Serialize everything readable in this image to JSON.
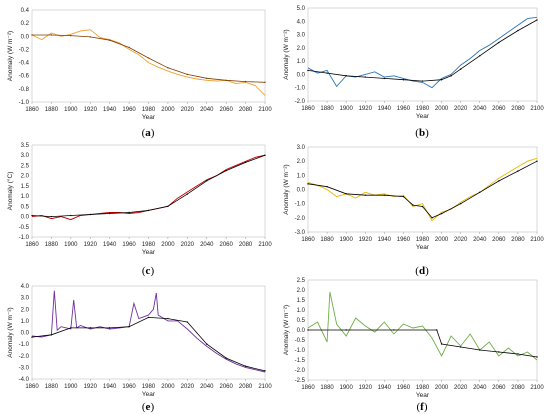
{
  "figure": {
    "panels": [
      {
        "label_open": "(",
        "label_letter": "a",
        "label_close": ")",
        "ylabel": "Anomaly (W m⁻²)",
        "xlabel": "Year"
      },
      {
        "label_open": "(",
        "label_letter": "b",
        "label_close": ")",
        "ylabel": "Anomaly (W m⁻²)",
        "xlabel": "Year"
      },
      {
        "label_open": "(",
        "label_letter": "c",
        "label_close": ")",
        "ylabel": "Anomaly (°C)",
        "xlabel": "Year"
      },
      {
        "label_open": "(",
        "label_letter": "d",
        "label_close": ")",
        "ylabel": "Anomaly (W m⁻²)",
        "xlabel": "Year"
      },
      {
        "label_open": "(",
        "label_letter": "e",
        "label_close": ")",
        "ylabel": "Anomaly (W m⁻²)",
        "xlabel": "Year"
      },
      {
        "label_open": "(",
        "label_letter": "f",
        "label_close": ")",
        "ylabel": "Anomaly (W m⁻²)",
        "xlabel": "Year"
      }
    ]
  },
  "chart_data": [
    {
      "type": "line",
      "panel": "a",
      "xlabel": "Year",
      "ylabel": "Anomaly (W m⁻²)",
      "xlim": [
        1860,
        2100
      ],
      "ylim": [
        -1.0,
        0.4
      ],
      "xticks": [
        1860,
        1880,
        1900,
        1920,
        1940,
        1960,
        1980,
        2000,
        2020,
        2040,
        2060,
        2080,
        2100
      ],
      "yticks": [
        -1.0,
        -0.8,
        -0.6,
        -0.4,
        -0.2,
        0.0,
        0.2,
        0.4
      ],
      "ytick_labels": [
        "-1.0",
        "-0.8",
        "-0.6",
        "-0.4",
        "-0.2",
        "0.0",
        "0.2",
        "0.4"
      ],
      "series_color": "#f0a030",
      "trend_color": "#7a3c00",
      "series": [
        {
          "x": [
            1860,
            1870,
            1880,
            1890,
            1900,
            1910,
            1920,
            1930,
            1940,
            1950,
            1960,
            1970,
            1980,
            1990,
            2000,
            2010,
            2020,
            2030,
            2040,
            2050,
            2060,
            2070,
            2080,
            2090,
            2100
          ],
          "values": [
            0.02,
            -0.05,
            0.05,
            0.0,
            0.03,
            0.08,
            0.1,
            -0.02,
            -0.05,
            -0.1,
            -0.2,
            -0.28,
            -0.4,
            -0.47,
            -0.53,
            -0.58,
            -0.62,
            -0.65,
            -0.67,
            -0.68,
            -0.67,
            -0.72,
            -0.7,
            -0.75,
            -0.9
          ]
        },
        {
          "x": [
            1860,
            1880,
            1900,
            1920,
            1940,
            1960,
            1980,
            2000,
            2020,
            2040,
            2060,
            2080,
            2100
          ],
          "values": [
            0.02,
            0.02,
            0.01,
            -0.01,
            -0.06,
            -0.17,
            -0.33,
            -0.48,
            -0.58,
            -0.64,
            -0.67,
            -0.69,
            -0.7
          ]
        }
      ]
    },
    {
      "type": "line",
      "panel": "b",
      "xlabel": "Year",
      "ylabel": "Anomaly (W m⁻²)",
      "xlim": [
        1860,
        2100
      ],
      "ylim": [
        -2.0,
        5.0
      ],
      "xticks": [
        1860,
        1880,
        1900,
        1920,
        1940,
        1960,
        1980,
        2000,
        2020,
        2040,
        2060,
        2080,
        2100
      ],
      "yticks": [
        -2.0,
        -1.0,
        0.0,
        1.0,
        2.0,
        3.0,
        4.0,
        5.0
      ],
      "ytick_labels": [
        "-2.0",
        "-1.0",
        "0.0",
        "1.0",
        "2.0",
        "3.0",
        "4.0",
        "5.0"
      ],
      "series_color": "#2e75b6",
      "trend_color": "#000000",
      "series": [
        {
          "x": [
            1860,
            1870,
            1880,
            1890,
            1900,
            1910,
            1920,
            1930,
            1940,
            1950,
            1960,
            1970,
            1980,
            1990,
            2000,
            2010,
            2020,
            2030,
            2040,
            2050,
            2060,
            2070,
            2080,
            2090,
            2100
          ],
          "values": [
            0.5,
            0.1,
            0.3,
            -0.9,
            -0.1,
            -0.2,
            0.0,
            0.2,
            -0.2,
            -0.1,
            -0.3,
            -0.5,
            -0.6,
            -1.0,
            -0.3,
            0.0,
            0.7,
            1.2,
            1.8,
            2.2,
            2.7,
            3.2,
            3.7,
            4.2,
            4.3
          ]
        },
        {
          "x": [
            1860,
            1880,
            1900,
            1920,
            1940,
            1960,
            1980,
            2000,
            2010,
            2020,
            2040,
            2060,
            2080,
            2100
          ],
          "values": [
            0.3,
            0.1,
            -0.1,
            -0.2,
            -0.3,
            -0.4,
            -0.5,
            -0.4,
            -0.1,
            0.4,
            1.4,
            2.4,
            3.3,
            4.1
          ]
        }
      ]
    },
    {
      "type": "line",
      "panel": "c",
      "xlabel": "Year",
      "ylabel": "Anomaly (°C)",
      "xlim": [
        1860,
        2100
      ],
      "ylim": [
        -1.0,
        3.5
      ],
      "xticks": [
        1860,
        1880,
        1900,
        1920,
        1940,
        1960,
        1980,
        2000,
        2020,
        2040,
        2060,
        2080,
        2100
      ],
      "yticks": [
        -1.0,
        -0.5,
        0.0,
        0.5,
        1.0,
        1.5,
        2.0,
        2.5,
        3.0,
        3.5
      ],
      "ytick_labels": [
        "-1.0",
        "-0.5",
        "0.0",
        "0.5",
        "1.0",
        "1.5",
        "2.0",
        "2.5",
        "3.0",
        "3.5"
      ],
      "series_color": "#c00000",
      "trend_color": "#000000",
      "series": [
        {
          "x": [
            1860,
            1870,
            1880,
            1890,
            1900,
            1910,
            1920,
            1930,
            1940,
            1950,
            1960,
            1970,
            1980,
            1990,
            2000,
            2010,
            2020,
            2030,
            2040,
            2050,
            2060,
            2070,
            2080,
            2090,
            2100
          ],
          "values": [
            0.0,
            0.05,
            -0.1,
            0.0,
            -0.15,
            0.05,
            0.1,
            0.15,
            0.2,
            0.2,
            0.15,
            0.2,
            0.3,
            0.4,
            0.5,
            0.9,
            1.2,
            1.5,
            1.8,
            2.0,
            2.3,
            2.5,
            2.7,
            2.9,
            3.0
          ]
        },
        {
          "x": [
            1860,
            1880,
            1900,
            1920,
            1940,
            1960,
            1980,
            2000,
            2020,
            2040,
            2060,
            2080,
            2100
          ],
          "values": [
            0.05,
            0.0,
            0.05,
            0.1,
            0.15,
            0.2,
            0.3,
            0.5,
            1.1,
            1.75,
            2.25,
            2.65,
            3.0
          ]
        }
      ]
    },
    {
      "type": "line",
      "panel": "d",
      "xlabel": "Year",
      "ylabel": "Anomaly (W m⁻²)",
      "xlim": [
        1860,
        2100
      ],
      "ylim": [
        -3.0,
        3.0
      ],
      "xticks": [
        1860,
        1880,
        1900,
        1920,
        1940,
        1960,
        1980,
        2000,
        2020,
        2040,
        2060,
        2080,
        2100
      ],
      "yticks": [
        -3.0,
        -2.0,
        -1.0,
        0.0,
        1.0,
        2.0,
        3.0
      ],
      "ytick_labels": [
        "-3.0",
        "-2.0",
        "-1.0",
        "0.0",
        "1.0",
        "2.0",
        "3.0"
      ],
      "series_color": "#e6b800",
      "trend_color": "#000000",
      "series": [
        {
          "x": [
            1860,
            1870,
            1880,
            1890,
            1900,
            1910,
            1920,
            1930,
            1940,
            1950,
            1960,
            1970,
            1980,
            1990,
            2000,
            2010,
            2020,
            2030,
            2040,
            2050,
            2060,
            2070,
            2080,
            2090,
            2100
          ],
          "values": [
            0.5,
            0.3,
            0.0,
            -0.5,
            -0.3,
            -0.6,
            -0.2,
            -0.4,
            -0.3,
            -0.5,
            -0.4,
            -1.2,
            -1.0,
            -2.2,
            -1.6,
            -1.4,
            -0.9,
            -0.5,
            -0.2,
            0.3,
            0.8,
            1.2,
            1.6,
            2.0,
            2.2
          ]
        },
        {
          "x": [
            1860,
            1880,
            1900,
            1920,
            1940,
            1960,
            1970,
            1980,
            1990,
            2000,
            2020,
            2040,
            2060,
            2080,
            2100
          ],
          "values": [
            0.4,
            0.2,
            -0.3,
            -0.4,
            -0.4,
            -0.5,
            -1.1,
            -1.2,
            -2.0,
            -1.7,
            -1.0,
            -0.2,
            0.6,
            1.3,
            2.0
          ]
        }
      ]
    },
    {
      "type": "line",
      "panel": "e",
      "xlabel": "Year",
      "ylabel": "Anomaly (W m⁻²)",
      "xlim": [
        1860,
        2100
      ],
      "ylim": [
        -4.0,
        4.0
      ],
      "xticks": [
        1860,
        1880,
        1900,
        1920,
        1940,
        1960,
        1980,
        2000,
        2020,
        2040,
        2060,
        2080,
        2100
      ],
      "yticks": [
        -4.0,
        -3.0,
        -2.0,
        -1.0,
        0.0,
        1.0,
        2.0,
        3.0,
        4.0
      ],
      "ytick_labels": [
        "-4.0",
        "-3.0",
        "-2.0",
        "-1.0",
        "0.0",
        "1.0",
        "2.0",
        "3.0",
        "4.0"
      ],
      "series_color": "#7030a0",
      "trend_color": "#000000",
      "series": [
        {
          "x": [
            1860,
            1870,
            1880,
            1883,
            1886,
            1890,
            1900,
            1903,
            1906,
            1910,
            1920,
            1930,
            1940,
            1950,
            1960,
            1965,
            1970,
            1980,
            1985,
            1988,
            1990,
            2000,
            2010,
            2020,
            2030,
            2040,
            2050,
            2060,
            2070,
            2080,
            2090,
            2100
          ],
          "values": [
            -0.3,
            -0.4,
            -0.2,
            3.6,
            0.2,
            0.5,
            0.3,
            2.8,
            0.4,
            0.6,
            0.3,
            0.5,
            0.3,
            0.4,
            0.5,
            2.5,
            1.2,
            1.5,
            2.0,
            3.4,
            1.5,
            1.0,
            1.0,
            0.3,
            -0.5,
            -1.2,
            -1.8,
            -2.3,
            -2.7,
            -3.0,
            -3.2,
            -3.4
          ]
        },
        {
          "x": [
            1860,
            1880,
            1900,
            1920,
            1940,
            1960,
            1980,
            2000,
            2020,
            2040,
            2060,
            2080,
            2100
          ],
          "values": [
            -0.4,
            -0.2,
            0.4,
            0.4,
            0.4,
            0.5,
            1.3,
            1.2,
            0.9,
            -1.0,
            -2.2,
            -2.9,
            -3.3
          ]
        }
      ]
    },
    {
      "type": "line",
      "panel": "f",
      "xlabel": "Year",
      "ylabel": "Anomaly (W m⁻²)",
      "xlim": [
        1860,
        2100
      ],
      "ylim": [
        -2.5,
        2.5
      ],
      "xticks": [
        1860,
        1880,
        1900,
        1920,
        1940,
        1960,
        1980,
        2000,
        2020,
        2040,
        2060,
        2080,
        2100
      ],
      "yticks": [
        -2.5,
        -2.0,
        -1.5,
        -1.0,
        -0.5,
        0.0,
        0.5,
        1.0,
        1.5,
        2.0,
        2.5
      ],
      "ytick_labels": [
        "-2.5",
        "-2.0",
        "-1.5",
        "-1.0",
        "-0.5",
        "0.0",
        "0.5",
        "1.0",
        "1.5",
        "2.0",
        "2.5"
      ],
      "series_color": "#70ad47",
      "trend_color": "#000000",
      "series": [
        {
          "x": [
            1860,
            1870,
            1880,
            1883,
            1890,
            1900,
            1910,
            1920,
            1930,
            1940,
            1950,
            1960,
            1970,
            1980,
            1990,
            2000,
            2010,
            2020,
            2030,
            2040,
            2050,
            2060,
            2070,
            2080,
            2090,
            2100
          ],
          "values": [
            0.1,
            0.4,
            -0.6,
            1.9,
            0.3,
            -0.3,
            0.6,
            0.2,
            -0.1,
            0.4,
            -0.2,
            0.3,
            0.1,
            0.2,
            -0.4,
            -1.3,
            -0.3,
            -0.8,
            -0.2,
            -1.0,
            -0.6,
            -1.3,
            -0.9,
            -1.3,
            -1.1,
            -1.5
          ]
        },
        {
          "x": [
            1860,
            1900,
            1950,
            1995,
            2000,
            2020,
            2040,
            2060,
            2080,
            2100
          ],
          "values": [
            0.0,
            0.0,
            0.0,
            0.0,
            -0.7,
            -0.85,
            -1.0,
            -1.1,
            -1.2,
            -1.35
          ]
        }
      ]
    }
  ]
}
